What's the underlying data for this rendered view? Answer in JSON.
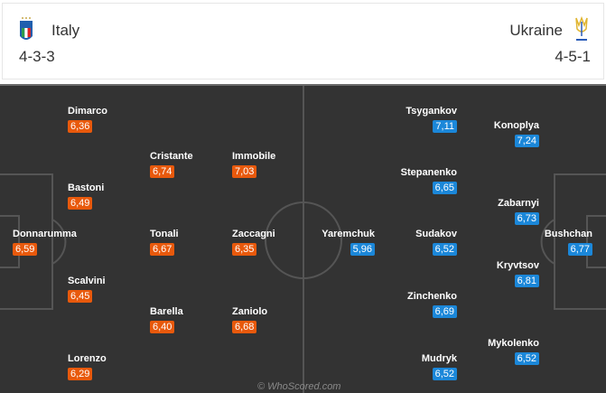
{
  "home": {
    "name": "Italy",
    "formation": "4-3-3",
    "crest_icon": "italy-crest-icon",
    "color": "#e8590c",
    "players": [
      {
        "name": "Dimarco",
        "rating": "6,36"
      },
      {
        "name": "Bastoni",
        "rating": "6,49"
      },
      {
        "name": "Donnarumma",
        "rating": "6,59"
      },
      {
        "name": "Scalvini",
        "rating": "6,45"
      },
      {
        "name": "Lorenzo",
        "rating": "6,29"
      },
      {
        "name": "Cristante",
        "rating": "6,74"
      },
      {
        "name": "Tonali",
        "rating": "6,67"
      },
      {
        "name": "Barella",
        "rating": "6,40"
      },
      {
        "name": "Immobile",
        "rating": "7,03"
      },
      {
        "name": "Zaccagni",
        "rating": "6,35"
      },
      {
        "name": "Zaniolo",
        "rating": "6,68"
      }
    ]
  },
  "away": {
    "name": "Ukraine",
    "formation": "4-5-1",
    "crest_icon": "ukraine-crest-icon",
    "color": "#1b87d9",
    "players": [
      {
        "name": "Yaremchuk",
        "rating": "5,96"
      },
      {
        "name": "Tsygankov",
        "rating": "7,11"
      },
      {
        "name": "Stepanenko",
        "rating": "6,65"
      },
      {
        "name": "Sudakov",
        "rating": "6,52"
      },
      {
        "name": "Zinchenko",
        "rating": "6,69"
      },
      {
        "name": "Mudryk",
        "rating": "6,52"
      },
      {
        "name": "Konoplya",
        "rating": "7,24"
      },
      {
        "name": "Zabarnyi",
        "rating": "6,73"
      },
      {
        "name": "Kryvtsov",
        "rating": "6,81"
      },
      {
        "name": "Mykolenko",
        "rating": "6,52"
      },
      {
        "name": "Bushchan",
        "rating": "6,77"
      }
    ]
  },
  "watermark": "© WhoScored.com"
}
